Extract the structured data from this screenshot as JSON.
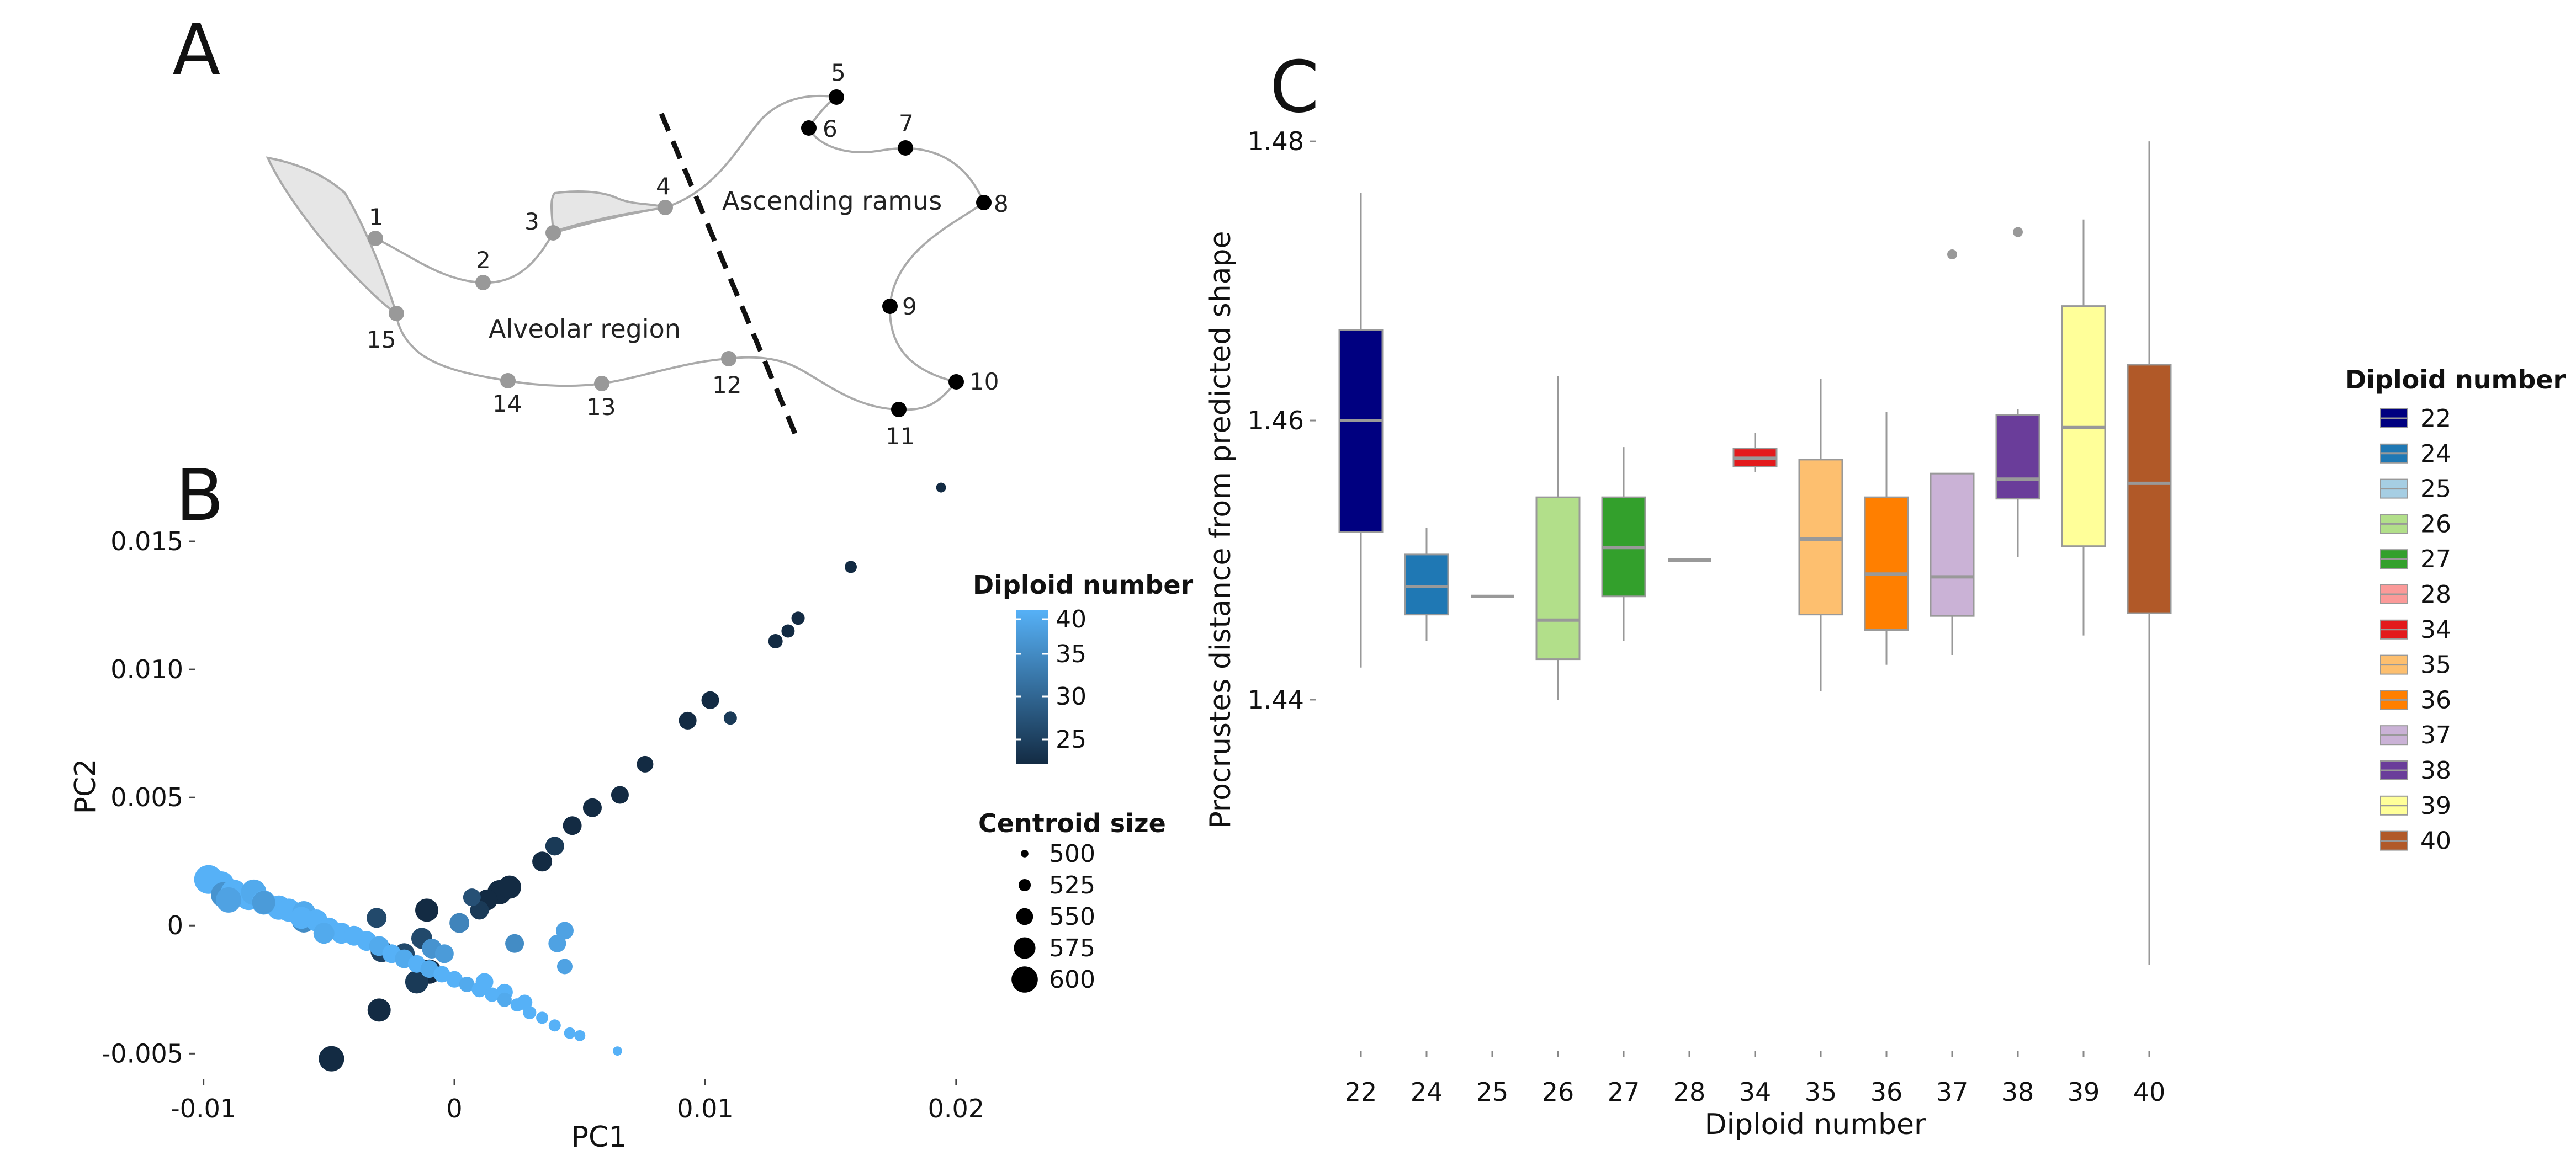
{
  "panels": {
    "a": "A",
    "b": "B",
    "c": "C"
  },
  "panel_a": {
    "region_labels": {
      "ascending": "Ascending ramus",
      "alveolar": "Alveolar region"
    },
    "landmarks": [
      {
        "id": "1",
        "group": "alveolar"
      },
      {
        "id": "2",
        "group": "alveolar"
      },
      {
        "id": "3",
        "group": "alveolar"
      },
      {
        "id": "4",
        "group": "alveolar"
      },
      {
        "id": "5",
        "group": "ramus"
      },
      {
        "id": "6",
        "group": "ramus"
      },
      {
        "id": "7",
        "group": "ramus"
      },
      {
        "id": "8",
        "group": "ramus"
      },
      {
        "id": "9",
        "group": "ramus"
      },
      {
        "id": "10",
        "group": "ramus"
      },
      {
        "id": "11",
        "group": "ramus"
      },
      {
        "id": "12",
        "group": "alveolar"
      },
      {
        "id": "13",
        "group": "alveolar"
      },
      {
        "id": "14",
        "group": "alveolar"
      },
      {
        "id": "15",
        "group": "alveolar"
      }
    ],
    "colors": {
      "alveolar_point": "#999999",
      "ramus_point": "#000000",
      "outline": "#aaaaaa",
      "fill": "#e6e6e6"
    }
  },
  "chart_data": [
    {
      "type": "scatter",
      "xlabel": "PC1",
      "ylabel": "PC2",
      "xlim": [
        -0.0103,
        0.0215
      ],
      "ylim": [
        -0.0062,
        0.0175
      ],
      "xticks": [
        -0.01,
        0,
        0.01,
        0.02
      ],
      "xtick_labels": [
        "-0.01",
        "0",
        "0.01",
        "0.02"
      ],
      "yticks": [
        -0.005,
        0,
        0.005,
        0.01,
        0.015
      ],
      "ytick_labels": [
        "-0.005",
        "0",
        "0.005",
        "0.010",
        "0.015"
      ],
      "grid": false,
      "color_legend": {
        "title": "Diploid number",
        "ticks": [
          "40",
          "35",
          "30",
          "25"
        ],
        "low_color": "#132b43",
        "high_color": "#56b1f7"
      },
      "size_legend": {
        "title": "Centroid size",
        "labels": [
          "500",
          "525",
          "550",
          "575",
          "600"
        ],
        "values": [
          500,
          525,
          550,
          575,
          600
        ]
      },
      "points": [
        {
          "x": 0.0194,
          "y": 0.0171,
          "dn": 22,
          "cs": 505
        },
        {
          "x": 0.0158,
          "y": 0.014,
          "dn": 22,
          "cs": 515
        },
        {
          "x": 0.0137,
          "y": 0.012,
          "dn": 22,
          "cs": 520
        },
        {
          "x": 0.0133,
          "y": 0.0115,
          "dn": 22,
          "cs": 520
        },
        {
          "x": 0.0128,
          "y": 0.0111,
          "dn": 22,
          "cs": 525
        },
        {
          "x": 0.011,
          "y": 0.0081,
          "dn": 24,
          "cs": 520
        },
        {
          "x": 0.0102,
          "y": 0.0088,
          "dn": 22,
          "cs": 540
        },
        {
          "x": 0.0093,
          "y": 0.008,
          "dn": 22,
          "cs": 540
        },
        {
          "x": 0.0076,
          "y": 0.0063,
          "dn": 22,
          "cs": 535
        },
        {
          "x": 0.0066,
          "y": 0.0051,
          "dn": 22,
          "cs": 540
        },
        {
          "x": 0.0055,
          "y": 0.0046,
          "dn": 22,
          "cs": 545
        },
        {
          "x": 0.0047,
          "y": 0.0039,
          "dn": 22,
          "cs": 545
        },
        {
          "x": 0.004,
          "y": 0.0031,
          "dn": 24,
          "cs": 545
        },
        {
          "x": 0.0035,
          "y": 0.0025,
          "dn": 22,
          "cs": 550
        },
        {
          "x": 0.0022,
          "y": 0.0015,
          "dn": 22,
          "cs": 565
        },
        {
          "x": 0.0018,
          "y": 0.0013,
          "dn": 22,
          "cs": 570
        },
        {
          "x": 0.0013,
          "y": 0.001,
          "dn": 22,
          "cs": 555
        },
        {
          "x": 0.001,
          "y": 0.0006,
          "dn": 24,
          "cs": 545
        },
        {
          "x": 0.0007,
          "y": 0.0011,
          "dn": 27,
          "cs": 540
        },
        {
          "x": 0.0002,
          "y": 0.0001,
          "dn": 34,
          "cs": 550
        },
        {
          "x": 0.0024,
          "y": -0.0007,
          "dn": 35,
          "cs": 545
        },
        {
          "x": 0.0041,
          "y": -0.0007,
          "dn": 38,
          "cs": 540
        },
        {
          "x": 0.0044,
          "y": -0.0016,
          "dn": 38,
          "cs": 530
        },
        {
          "x": 0.0044,
          "y": -0.0002,
          "dn": 38,
          "cs": 540
        },
        {
          "x": -0.002,
          "y": -0.0011,
          "dn": 26,
          "cs": 555
        },
        {
          "x": -0.001,
          "y": -0.0018,
          "dn": 22,
          "cs": 570
        },
        {
          "x": -0.0015,
          "y": -0.0022,
          "dn": 24,
          "cs": 565
        },
        {
          "x": -0.003,
          "y": -0.0033,
          "dn": 22,
          "cs": 565
        },
        {
          "x": -0.0049,
          "y": -0.0052,
          "dn": 22,
          "cs": 575
        },
        {
          "x": -0.0029,
          "y": -0.001,
          "dn": 25,
          "cs": 560
        },
        {
          "x": -0.0031,
          "y": 0.0003,
          "dn": 26,
          "cs": 550
        },
        {
          "x": -0.0013,
          "y": -0.0005,
          "dn": 26,
          "cs": 555
        },
        {
          "x": -0.0011,
          "y": 0.0006,
          "dn": 22,
          "cs": 565
        },
        {
          "x": -0.006,
          "y": 0.0002,
          "dn": 35,
          "cs": 570
        },
        {
          "x": -0.0092,
          "y": 0.0012,
          "dn": 36,
          "cs": 575
        },
        {
          "x": -0.0076,
          "y": 0.0009,
          "dn": 37,
          "cs": 565
        },
        {
          "x": -0.0009,
          "y": -0.0009,
          "dn": 36,
          "cs": 550
        },
        {
          "x": -0.0004,
          "y": -0.0011,
          "dn": 37,
          "cs": 545
        },
        {
          "x": -0.0098,
          "y": 0.0018,
          "dn": 40,
          "cs": 590
        },
        {
          "x": -0.0093,
          "y": 0.0016,
          "dn": 40,
          "cs": 580
        },
        {
          "x": -0.0088,
          "y": 0.0013,
          "dn": 40,
          "cs": 575
        },
        {
          "x": -0.0082,
          "y": 0.0011,
          "dn": 40,
          "cs": 575
        },
        {
          "x": -0.0076,
          "y": 0.0009,
          "dn": 40,
          "cs": 570
        },
        {
          "x": -0.007,
          "y": 0.0007,
          "dn": 40,
          "cs": 570
        },
        {
          "x": -0.0066,
          "y": 0.0006,
          "dn": 40,
          "cs": 565
        },
        {
          "x": -0.0061,
          "y": 0.0003,
          "dn": 40,
          "cs": 560
        },
        {
          "x": -0.0055,
          "y": 0.0002,
          "dn": 40,
          "cs": 560
        },
        {
          "x": -0.005,
          "y": -0.0001,
          "dn": 40,
          "cs": 555
        },
        {
          "x": -0.0045,
          "y": -0.0003,
          "dn": 40,
          "cs": 555
        },
        {
          "x": -0.004,
          "y": -0.0004,
          "dn": 40,
          "cs": 550
        },
        {
          "x": -0.0035,
          "y": -0.0006,
          "dn": 40,
          "cs": 550
        },
        {
          "x": -0.003,
          "y": -0.0008,
          "dn": 39,
          "cs": 550
        },
        {
          "x": -0.0025,
          "y": -0.0011,
          "dn": 40,
          "cs": 545
        },
        {
          "x": -0.002,
          "y": -0.0013,
          "dn": 39,
          "cs": 545
        },
        {
          "x": -0.0015,
          "y": -0.0015,
          "dn": 40,
          "cs": 540
        },
        {
          "x": -0.001,
          "y": -0.0017,
          "dn": 39,
          "cs": 540
        },
        {
          "x": -0.0005,
          "y": -0.0019,
          "dn": 40,
          "cs": 535
        },
        {
          "x": 0.0,
          "y": -0.0021,
          "dn": 40,
          "cs": 535
        },
        {
          "x": 0.0005,
          "y": -0.0023,
          "dn": 39,
          "cs": 530
        },
        {
          "x": 0.001,
          "y": -0.0025,
          "dn": 40,
          "cs": 530
        },
        {
          "x": 0.0015,
          "y": -0.0027,
          "dn": 40,
          "cs": 525
        },
        {
          "x": 0.002,
          "y": -0.0029,
          "dn": 39,
          "cs": 525
        },
        {
          "x": 0.0025,
          "y": -0.0031,
          "dn": 40,
          "cs": 520
        },
        {
          "x": 0.003,
          "y": -0.0034,
          "dn": 40,
          "cs": 520
        },
        {
          "x": 0.0035,
          "y": -0.0036,
          "dn": 40,
          "cs": 515
        },
        {
          "x": 0.004,
          "y": -0.0039,
          "dn": 40,
          "cs": 515
        },
        {
          "x": 0.0046,
          "y": -0.0042,
          "dn": 40,
          "cs": 512
        },
        {
          "x": 0.005,
          "y": -0.0043,
          "dn": 40,
          "cs": 510
        },
        {
          "x": 0.0065,
          "y": -0.0049,
          "dn": 40,
          "cs": 502
        },
        {
          "x": -0.006,
          "y": 0.0005,
          "dn": 39,
          "cs": 565
        },
        {
          "x": -0.008,
          "y": 0.0013,
          "dn": 39,
          "cs": 575
        },
        {
          "x": -0.009,
          "y": 0.001,
          "dn": 38,
          "cs": 575
        },
        {
          "x": -0.0052,
          "y": -0.0003,
          "dn": 39,
          "cs": 555
        },
        {
          "x": 0.0012,
          "y": -0.0022,
          "dn": 40,
          "cs": 540
        },
        {
          "x": 0.002,
          "y": -0.0026,
          "dn": 40,
          "cs": 535
        },
        {
          "x": 0.0028,
          "y": -0.003,
          "dn": 40,
          "cs": 530
        }
      ]
    },
    {
      "type": "box",
      "xlabel": "Diploid number",
      "ylabel": "Procrustes distance from predicted shape",
      "ylim": [
        1.4162,
        1.4838
      ],
      "yticks": [
        1.44,
        1.46,
        1.48
      ],
      "ytick_labels": [
        "1.44",
        "1.46",
        "1.48"
      ],
      "grid": false,
      "legend_title": "Diploid number",
      "categories": [
        "22",
        "24",
        "25",
        "26",
        "27",
        "28",
        "34",
        "35",
        "36",
        "37",
        "38",
        "39",
        "40"
      ],
      "colors": [
        "#000080",
        "#1f78b4",
        "#a6cee3",
        "#b2df8a",
        "#33a02c",
        "#fb9a99",
        "#e31a1c",
        "#fdbf6f",
        "#ff7f00",
        "#cab2d6",
        "#6a3d9a",
        "#ffff99",
        "#b15928"
      ],
      "boxes": [
        {
          "min": 1.4423,
          "q1": 1.452,
          "median": 1.46,
          "q3": 1.4665,
          "max": 1.4763,
          "outliers": []
        },
        {
          "min": 1.4442,
          "q1": 1.4461,
          "median": 1.4481,
          "q3": 1.4504,
          "max": 1.4523,
          "outliers": []
        },
        {
          "min": 1.4474,
          "q1": 1.4474,
          "median": 1.4474,
          "q3": 1.4474,
          "max": 1.4474,
          "outliers": []
        },
        {
          "min": 1.44,
          "q1": 1.4429,
          "median": 1.4457,
          "q3": 1.4545,
          "max": 1.4632,
          "outliers": []
        },
        {
          "min": 1.4442,
          "q1": 1.4474,
          "median": 1.4509,
          "q3": 1.4545,
          "max": 1.4581,
          "outliers": []
        },
        {
          "min": 1.45,
          "q1": 1.45,
          "median": 1.45,
          "q3": 1.45,
          "max": 1.45,
          "outliers": []
        },
        {
          "min": 1.4563,
          "q1": 1.4567,
          "median": 1.4573,
          "q3": 1.458,
          "max": 1.4591,
          "outliers": []
        },
        {
          "min": 1.4406,
          "q1": 1.4461,
          "median": 1.4515,
          "q3": 1.4572,
          "max": 1.463,
          "outliers": []
        },
        {
          "min": 1.4425,
          "q1": 1.445,
          "median": 1.449,
          "q3": 1.4545,
          "max": 1.4606,
          "outliers": []
        },
        {
          "min": 1.4432,
          "q1": 1.446,
          "median": 1.4488,
          "q3": 1.4562,
          "max": 1.4562,
          "outliers": [
            1.4719
          ]
        },
        {
          "min": 1.4502,
          "q1": 1.4544,
          "median": 1.4558,
          "q3": 1.4604,
          "max": 1.4608,
          "outliers": [
            1.4735
          ]
        },
        {
          "min": 1.4446,
          "q1": 1.451,
          "median": 1.4595,
          "q3": 1.4682,
          "max": 1.4744,
          "outliers": []
        },
        {
          "min": 1.421,
          "q1": 1.4462,
          "median": 1.4555,
          "q3": 1.464,
          "max": 1.48,
          "outliers": []
        }
      ]
    }
  ]
}
